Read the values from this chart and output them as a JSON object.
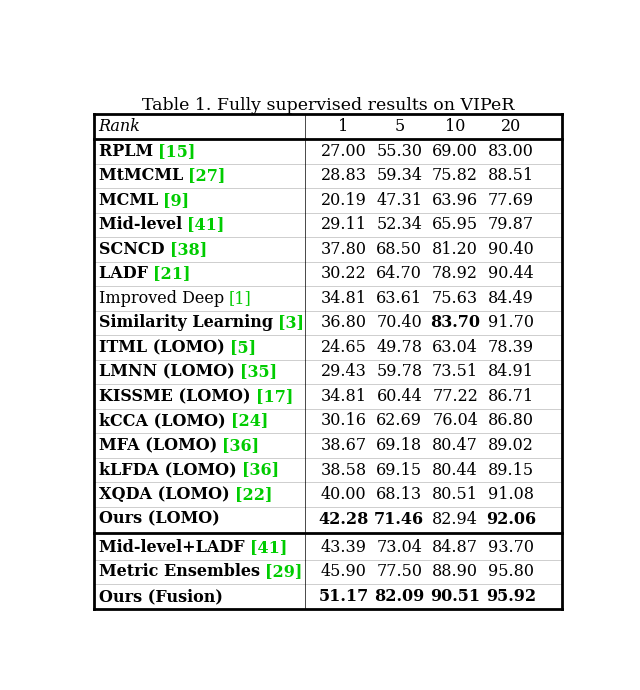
{
  "title": "Table 1. Fully supervised results on VIPeR",
  "header": [
    "Rank",
    "1",
    "5",
    "10",
    "20"
  ],
  "rows_group1": [
    {
      "method": "RPLM ",
      "ref": "[15]",
      "vals": [
        "27.00",
        "55.30",
        "69.00",
        "83.00"
      ],
      "bold_vals": []
    },
    {
      "method": "MtMCML ",
      "ref": "[27]",
      "vals": [
        "28.83",
        "59.34",
        "75.82",
        "88.51"
      ],
      "bold_vals": []
    },
    {
      "method": "MCML ",
      "ref": "[9]",
      "vals": [
        "20.19",
        "47.31",
        "63.96",
        "77.69"
      ],
      "bold_vals": []
    },
    {
      "method": "Mid-level ",
      "ref": "[41]",
      "vals": [
        "29.11",
        "52.34",
        "65.95",
        "79.87"
      ],
      "bold_vals": []
    },
    {
      "method": "SCNCD ",
      "ref": "[38]",
      "vals": [
        "37.80",
        "68.50",
        "81.20",
        "90.40"
      ],
      "bold_vals": []
    },
    {
      "method": "LADF ",
      "ref": "[21]",
      "vals": [
        "30.22",
        "64.70",
        "78.92",
        "90.44"
      ],
      "bold_vals": []
    },
    {
      "method": "Improved Deep ",
      "ref": "[1]",
      "vals": [
        "34.81",
        "63.61",
        "75.63",
        "84.49"
      ],
      "bold_vals": []
    },
    {
      "method": "Similarity Learning ",
      "ref": "[3]",
      "vals": [
        "36.80",
        "70.40",
        "83.70",
        "91.70"
      ],
      "bold_vals": [
        2
      ]
    },
    {
      "method": "ITML (LOMO) ",
      "ref": "[5]",
      "vals": [
        "24.65",
        "49.78",
        "63.04",
        "78.39"
      ],
      "bold_vals": []
    },
    {
      "method": "LMNN (LOMO) ",
      "ref": "[35]",
      "vals": [
        "29.43",
        "59.78",
        "73.51",
        "84.91"
      ],
      "bold_vals": []
    },
    {
      "method": "KISSME (LOMO) ",
      "ref": "[17]",
      "vals": [
        "34.81",
        "60.44",
        "77.22",
        "86.71"
      ],
      "bold_vals": []
    },
    {
      "method": "kCCA (LOMO) ",
      "ref": "[24]",
      "vals": [
        "30.16",
        "62.69",
        "76.04",
        "86.80"
      ],
      "bold_vals": []
    },
    {
      "method": "MFA (LOMO) ",
      "ref": "[36]",
      "vals": [
        "38.67",
        "69.18",
        "80.47",
        "89.02"
      ],
      "bold_vals": []
    },
    {
      "method": "kLFDA (LOMO) ",
      "ref": "[36]",
      "vals": [
        "38.58",
        "69.15",
        "80.44",
        "89.15"
      ],
      "bold_vals": []
    },
    {
      "method": "XQDA (LOMO) ",
      "ref": "[22]",
      "vals": [
        "40.00",
        "68.13",
        "80.51",
        "91.08"
      ],
      "bold_vals": []
    },
    {
      "method": "Ours (LOMO)",
      "ref": "",
      "vals": [
        "42.28",
        "71.46",
        "82.94",
        "92.06"
      ],
      "bold_vals": [
        0,
        1,
        3
      ]
    }
  ],
  "rows_group2": [
    {
      "method": "Mid-level+LADF ",
      "ref": "[41]",
      "vals": [
        "43.39",
        "73.04",
        "84.87",
        "93.70"
      ],
      "bold_vals": []
    },
    {
      "method": "Metric Ensembles ",
      "ref": "[29]",
      "vals": [
        "45.90",
        "77.50",
        "88.90",
        "95.80"
      ],
      "bold_vals": []
    },
    {
      "method": "Ours (Fusion)",
      "ref": "",
      "vals": [
        "51.17",
        "82.09",
        "90.51",
        "95.92"
      ],
      "bold_vals": [
        0,
        1,
        2,
        3
      ]
    }
  ],
  "method_bold_rows_g1": [
    0,
    1,
    2,
    3,
    4,
    5,
    7,
    8,
    9,
    10,
    11,
    12,
    13,
    14,
    15
  ],
  "method_bold_rows_g2": [
    0,
    1,
    2
  ],
  "green_color": "#00cc00",
  "text_color": "#000000",
  "background_color": "#ffffff",
  "font_size": 11.5,
  "title_font_size": 12.5,
  "lw_thick": 2.0,
  "lw_thin": 0.5
}
